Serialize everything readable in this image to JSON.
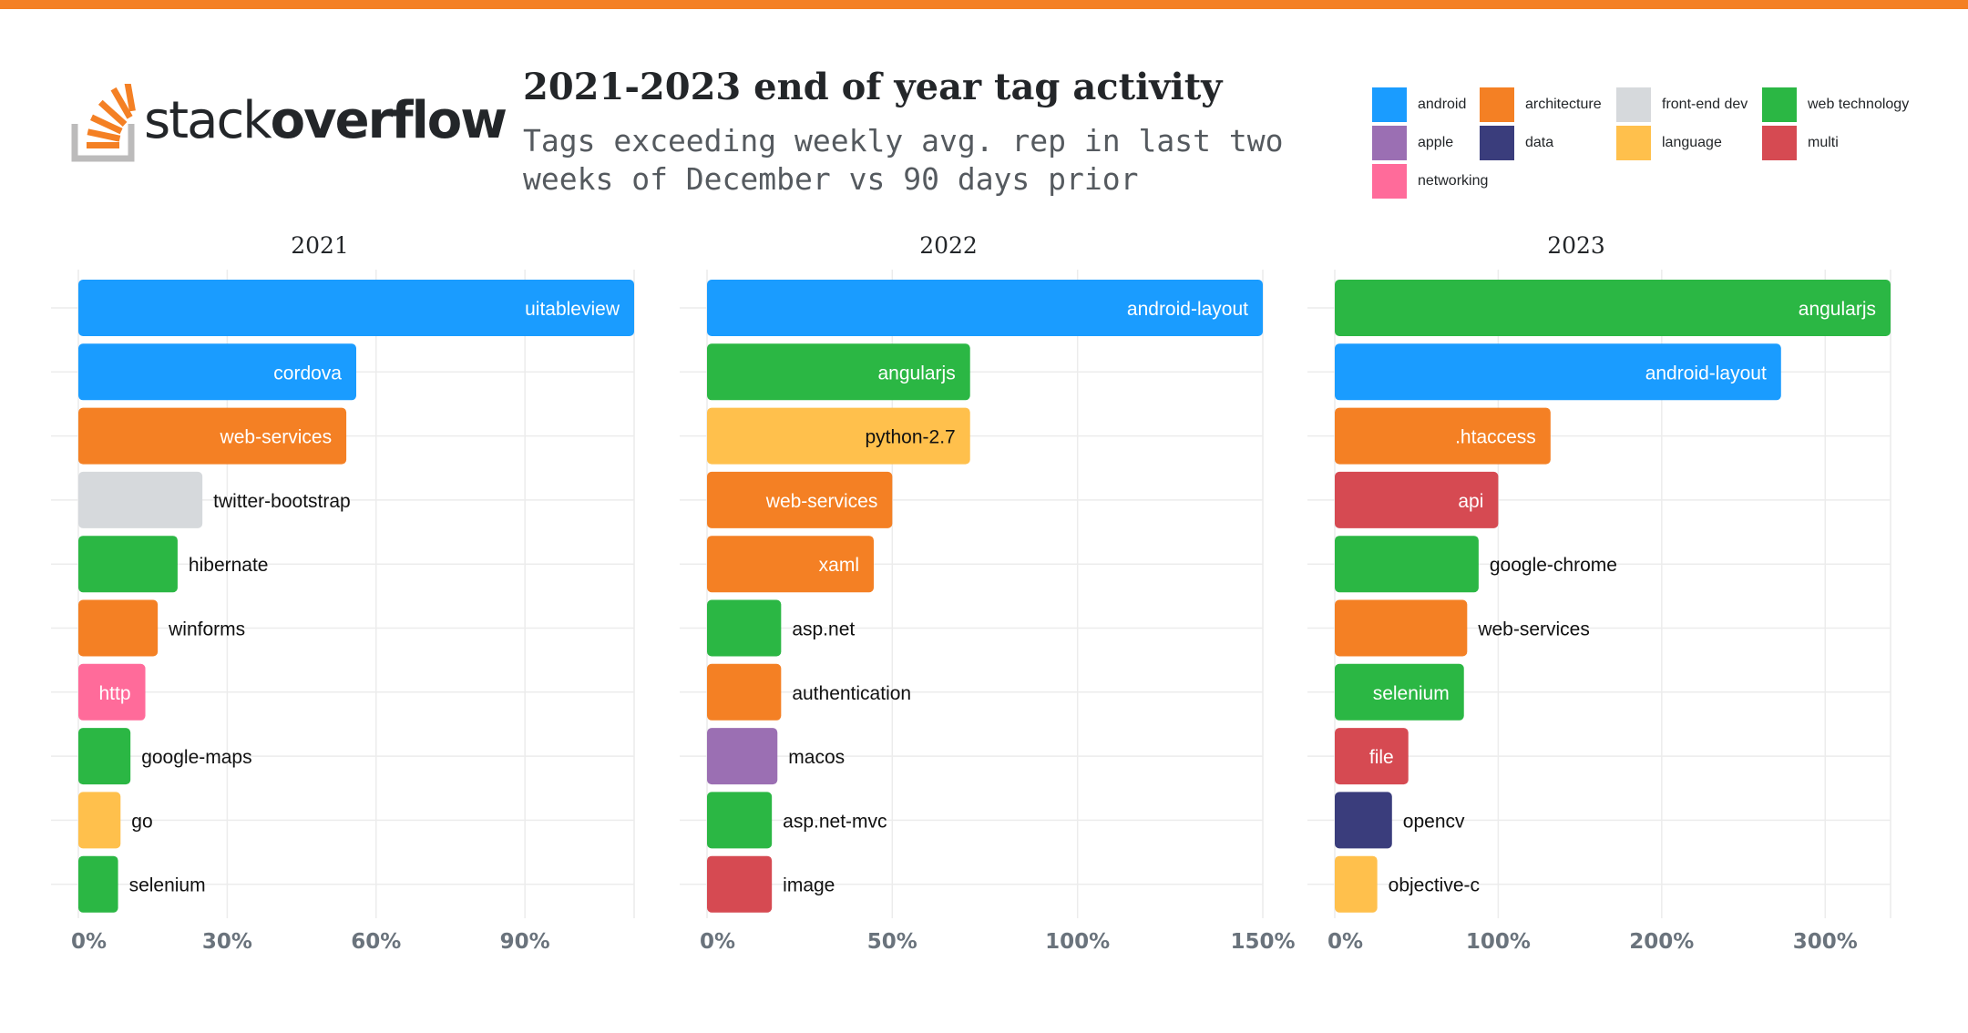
{
  "header": {
    "logo_text_light": "stack",
    "logo_text_bold": "overflow",
    "title": "2021-2023 end of year tag activity",
    "subtitle": "Tags exceeding weekly avg. rep in last two weeks of December vs 90 days prior"
  },
  "colors": {
    "top_bar": "#f48024",
    "gridline": "#ececec"
  },
  "legend": [
    {
      "label": "android",
      "color": "#1a9cff"
    },
    {
      "label": "architecture",
      "color": "#f48024"
    },
    {
      "label": "front-end dev",
      "color": "#d6d9dc"
    },
    {
      "label": "web technology",
      "color": "#2bb744"
    },
    {
      "label": "apple",
      "color": "#9b6fb3"
    },
    {
      "label": "data",
      "color": "#3a3d7c"
    },
    {
      "label": "language",
      "color": "#ffc04c"
    },
    {
      "label": "multi",
      "color": "#d64a52"
    },
    {
      "label": "networking",
      "color": "#ff6b9a"
    }
  ],
  "chart_data": [
    {
      "type": "bar",
      "orientation": "horizontal",
      "title": "2021",
      "xlim": [
        0,
        1.12
      ],
      "xticks": [
        0,
        0.3,
        0.6,
        0.9
      ],
      "xtick_labels": [
        "0%",
        "30%",
        "60%",
        "90%"
      ],
      "bars": [
        {
          "label": "uitableview",
          "value": 1.12,
          "category": "android"
        },
        {
          "label": "cordova",
          "value": 0.56,
          "category": "android"
        },
        {
          "label": "web-services",
          "value": 0.54,
          "category": "architecture"
        },
        {
          "label": "twitter-bootstrap",
          "value": 0.25,
          "category": "front-end dev"
        },
        {
          "label": "hibernate",
          "value": 0.2,
          "category": "web technology"
        },
        {
          "label": "winforms",
          "value": 0.16,
          "category": "architecture"
        },
        {
          "label": "http",
          "value": 0.135,
          "category": "networking"
        },
        {
          "label": "google-maps",
          "value": 0.105,
          "category": "web technology"
        },
        {
          "label": "go",
          "value": 0.085,
          "category": "language"
        },
        {
          "label": "selenium",
          "value": 0.08,
          "category": "web technology"
        }
      ]
    },
    {
      "type": "bar",
      "orientation": "horizontal",
      "title": "2022",
      "xlim": [
        0,
        1.5
      ],
      "xticks": [
        0,
        0.5,
        1.0,
        1.5
      ],
      "xtick_labels": [
        "0%",
        "50%",
        "100%",
        "150%"
      ],
      "bars": [
        {
          "label": "android-layout",
          "value": 1.5,
          "category": "android"
        },
        {
          "label": "angularjs",
          "value": 0.71,
          "category": "web technology"
        },
        {
          "label": "python-2.7",
          "value": 0.71,
          "category": "language"
        },
        {
          "label": "web-services",
          "value": 0.5,
          "category": "architecture"
        },
        {
          "label": "xaml",
          "value": 0.45,
          "category": "architecture"
        },
        {
          "label": "asp.net",
          "value": 0.2,
          "category": "web technology"
        },
        {
          "label": "authentication",
          "value": 0.2,
          "category": "architecture"
        },
        {
          "label": "macos",
          "value": 0.19,
          "category": "apple"
        },
        {
          "label": "asp.net-mvc",
          "value": 0.175,
          "category": "web technology"
        },
        {
          "label": "image",
          "value": 0.175,
          "category": "multi"
        }
      ]
    },
    {
      "type": "bar",
      "orientation": "horizontal",
      "title": "2023",
      "xlim": [
        0,
        3.4
      ],
      "xticks": [
        0,
        1.0,
        2.0,
        3.0
      ],
      "xtick_labels": [
        "0%",
        "100%",
        "200%",
        "300%"
      ],
      "bars": [
        {
          "label": "angularjs",
          "value": 3.4,
          "category": "web technology"
        },
        {
          "label": "android-layout",
          "value": 2.73,
          "category": "android"
        },
        {
          "label": ".htaccess",
          "value": 1.32,
          "category": "architecture"
        },
        {
          "label": "api",
          "value": 1.0,
          "category": "multi"
        },
        {
          "label": "google-chrome",
          "value": 0.88,
          "category": "web technology"
        },
        {
          "label": "web-services",
          "value": 0.81,
          "category": "architecture"
        },
        {
          "label": "selenium",
          "value": 0.79,
          "category": "web technology"
        },
        {
          "label": "file",
          "value": 0.45,
          "category": "multi"
        },
        {
          "label": "opencv",
          "value": 0.35,
          "category": "data"
        },
        {
          "label": "objective-c",
          "value": 0.26,
          "category": "language"
        }
      ]
    }
  ]
}
